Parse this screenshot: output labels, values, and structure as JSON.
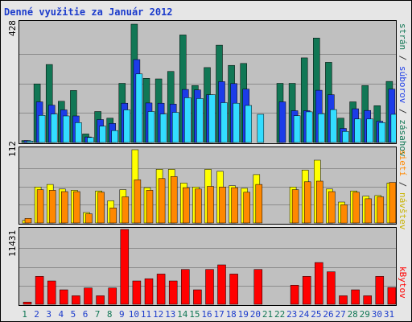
{
  "chart_data": [
    {
      "type": "bar",
      "title": "Denné využitie za Január 2012",
      "ymax_label": "428",
      "ylim": [
        0,
        428
      ],
      "categories": [
        "1",
        "2",
        "3",
        "4",
        "5",
        "6",
        "7",
        "8",
        "9",
        "10",
        "11",
        "12",
        "13",
        "14",
        "15",
        "16",
        "17",
        "18",
        "19",
        "20",
        "21",
        "22",
        "23",
        "24",
        "25",
        "26",
        "27",
        "28",
        "29",
        "30",
        "31"
      ],
      "series": [
        {
          "name": "strán",
          "color": "#117755",
          "values": [
            7,
            212,
            282,
            149,
            188,
            31,
            112,
            88,
            214,
            428,
            232,
            230,
            257,
            389,
            206,
            271,
            352,
            279,
            286,
            0,
            0,
            214,
            214,
            306,
            378,
            290,
            88,
            147,
            206,
            133,
            221
          ]
        },
        {
          "name": "súborov",
          "color": "#1c3ce8",
          "values": [
            7,
            147,
            135,
            118,
            96,
            20,
            83,
            69,
            142,
            300,
            143,
            142,
            139,
            192,
            190,
            173,
            220,
            213,
            193,
            0,
            0,
            147,
            115,
            115,
            189,
            173,
            51,
            122,
            116,
            77,
            193
          ]
        },
        {
          "name": "zásahov",
          "color": "#33ddff",
          "values": [
            5,
            98,
            103,
            96,
            72,
            18,
            59,
            43,
            118,
            248,
            112,
            103,
            109,
            162,
            159,
            173,
            144,
            142,
            134,
            102,
            0,
            0,
            97,
            111,
            104,
            119,
            40,
            85,
            85,
            72,
            102
          ]
        }
      ]
    },
    {
      "type": "bar",
      "ymax_label": "112",
      "ylim": [
        0,
        112
      ],
      "categories": [
        "1",
        "2",
        "3",
        "4",
        "5",
        "6",
        "7",
        "8",
        "9",
        "10",
        "11",
        "12",
        "13",
        "14",
        "15",
        "16",
        "17",
        "18",
        "19",
        "20",
        "21",
        "22",
        "23",
        "24",
        "25",
        "26",
        "27",
        "28",
        "29",
        "30",
        "31"
      ],
      "series": [
        {
          "name": "návštev",
          "color": "#ffff00",
          "values": [
            4,
            55,
            59,
            52,
            50,
            16,
            49,
            34,
            51,
            112,
            54,
            82,
            82,
            61,
            55,
            82,
            79,
            57,
            53,
            74,
            0,
            0,
            55,
            81,
            96,
            52,
            32,
            49,
            41,
            42,
            61
          ]
        },
        {
          "name": "sietí",
          "color": "#ff8800",
          "values": [
            7,
            51,
            50,
            48,
            48,
            14,
            47,
            23,
            40,
            66,
            50,
            68,
            71,
            54,
            52,
            56,
            55,
            54,
            47,
            59,
            0,
            0,
            51,
            63,
            64,
            48,
            28,
            47,
            37,
            40,
            62
          ]
        }
      ]
    },
    {
      "type": "bar",
      "ymax_label": "11431",
      "ylim": [
        0,
        11431
      ],
      "categories": [
        "1",
        "2",
        "3",
        "4",
        "5",
        "6",
        "7",
        "8",
        "9",
        "10",
        "11",
        "12",
        "13",
        "14",
        "15",
        "16",
        "17",
        "18",
        "19",
        "20",
        "21",
        "22",
        "23",
        "24",
        "25",
        "26",
        "27",
        "28",
        "29",
        "30",
        "31"
      ],
      "series": [
        {
          "name": "kBytov",
          "color": "#ff0000",
          "values": [
            350,
            4265,
            3560,
            2208,
            1303,
            2493,
            1303,
            2493,
            11431,
            3560,
            3913,
            4616,
            3560,
            5319,
            2208,
            5319,
            6022,
            4616,
            0,
            5319,
            0,
            0,
            2917,
            4265,
            6380,
            4962,
            1303,
            2208,
            1303,
            4265,
            2565
          ]
        }
      ]
    }
  ],
  "right_labels": {
    "top": [
      {
        "text": "strán",
        "color": "#117755"
      },
      {
        "text": " / ",
        "color": "#333333"
      },
      {
        "text": "súborov",
        "color": "#1c3ce8"
      },
      {
        "text": " / ",
        "color": "#333333"
      },
      {
        "text": "zásahov",
        "color": "#117755"
      }
    ],
    "mid": [
      {
        "text": "sietí",
        "color": "#ff8800"
      },
      {
        "text": " / ",
        "color": "#333333"
      },
      {
        "text": "návštev",
        "color": "#c8b400"
      }
    ],
    "bot": [
      {
        "text": "kBytov",
        "color": "#ff0000"
      }
    ]
  },
  "weekend_color": "#117755",
  "weekday_color": "#1c3ccc",
  "weekend_days": [
    "1",
    "7",
    "8",
    "14",
    "15",
    "21",
    "22",
    "28",
    "29"
  ]
}
